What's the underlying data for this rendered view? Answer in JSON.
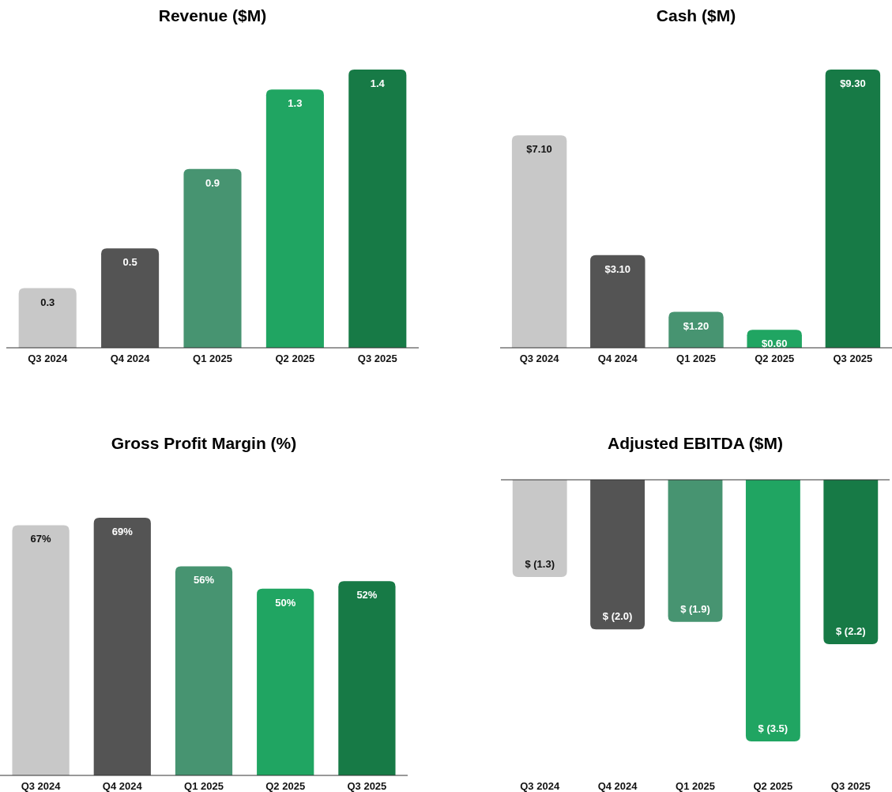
{
  "chart_data": [
    {
      "type": "bar",
      "title": "Revenue ($M)",
      "categories": [
        "Q3 2024",
        "Q4 2024",
        "Q1 2025",
        "Q2 2025",
        "Q3 2025"
      ],
      "values": [
        0.3,
        0.5,
        0.9,
        1.3,
        1.4
      ],
      "value_labels": [
        "0.3",
        "0.5",
        "0.9",
        "1.3",
        "1.4"
      ],
      "colors": [
        "#c8c8c8",
        "#545454",
        "#479471",
        "#20a562",
        "#177a46"
      ]
    },
    {
      "type": "bar",
      "title": "Cash ($M)",
      "categories": [
        "Q3 2024",
        "Q4 2024",
        "Q1 2025",
        "Q2 2025",
        "Q3 2025"
      ],
      "values": [
        7.1,
        3.1,
        1.2,
        0.6,
        9.3
      ],
      "value_labels": [
        "$7.10",
        "$3.10",
        "$1.20",
        "$0.60",
        "$9.30"
      ],
      "colors": [
        "#c8c8c8",
        "#545454",
        "#479471",
        "#20a562",
        "#177a46"
      ]
    },
    {
      "type": "bar",
      "title": "Gross Profit Margin (%)",
      "categories": [
        "Q3 2024",
        "Q4 2024",
        "Q1 2025",
        "Q2 2025",
        "Q3 2025"
      ],
      "values": [
        67,
        69,
        56,
        50,
        52
      ],
      "value_labels": [
        "67%",
        "69%",
        "56%",
        "50%",
        "52%"
      ],
      "colors": [
        "#c8c8c8",
        "#545454",
        "#479471",
        "#20a562",
        "#177a46"
      ]
    },
    {
      "type": "bar",
      "title": "Adjusted EBITDA ($M)",
      "categories": [
        "Q3 2024",
        "Q4 2024",
        "Q1 2025",
        "Q2 2025",
        "Q3 2025"
      ],
      "values": [
        -1.3,
        -2.0,
        -1.9,
        -3.5,
        -2.2
      ],
      "value_labels": [
        "$ (1.3)",
        "$ (2.0)",
        "$ (1.9)",
        "$ (3.5)",
        "$ (2.2)"
      ],
      "colors": [
        "#c8c8c8",
        "#545454",
        "#479471",
        "#20a562",
        "#177a46"
      ]
    }
  ]
}
